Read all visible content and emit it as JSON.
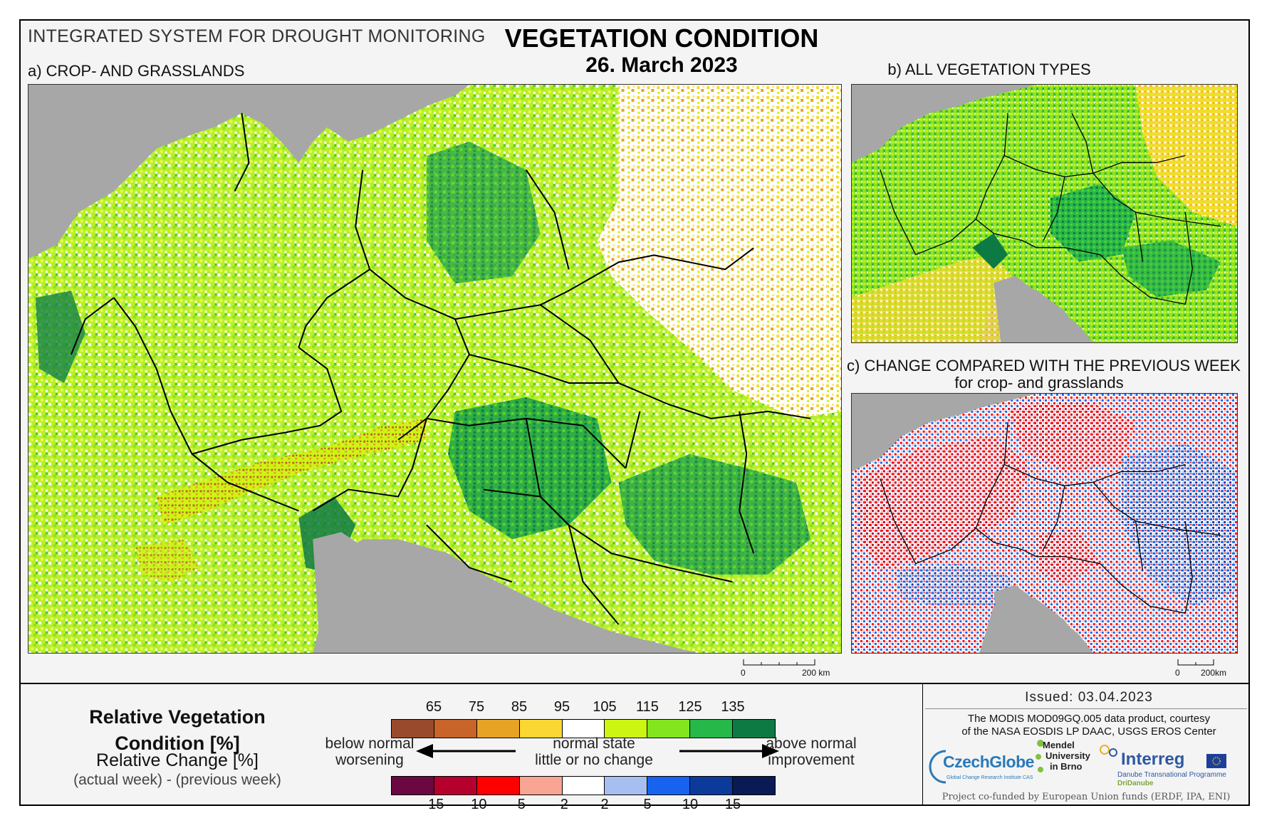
{
  "header": {
    "system_title": "INTEGRATED SYSTEM FOR DROUGHT MONITORING",
    "main_title": "VEGETATION CONDITION",
    "date": "26. March 2023"
  },
  "panels": {
    "a_label": "a) CROP- AND GRASSLANDS",
    "b_label": "b) ALL VEGETATION TYPES",
    "c_label": "c) CHANGE COMPARED WITH THE PREVIOUS WEEK",
    "c_sublabel": "for crop- and grasslands"
  },
  "scalebars": {
    "a": {
      "start": "0",
      "end": "200 km"
    },
    "c": {
      "start": "0",
      "end": "200km"
    }
  },
  "legend": {
    "title": "Relative Vegetation Condition [%]",
    "change_title": "Relative Change [%]",
    "change_formula": "(actual week) - (previous week)",
    "condition_ticks": [
      "65",
      "75",
      "85",
      "95",
      "105",
      "115",
      "125",
      "135"
    ],
    "condition_colors": [
      "#9a4a2c",
      "#c8642a",
      "#e7a324",
      "#fad733",
      "#ffffff",
      "#cdf514",
      "#83e51e",
      "#27b84a",
      "#0e7a43"
    ],
    "change_ticks": [
      "-15",
      "-10",
      "-5",
      "-2",
      "2",
      "5",
      "10",
      "15"
    ],
    "change_colors": [
      "#6b0741",
      "#b5002e",
      "#ff0000",
      "#f9a593",
      "#ffffff",
      "#a7bff0",
      "#1763f0",
      "#0b3a9a",
      "#0a1a55"
    ],
    "left_text": "below normal\nworsening",
    "left_line1": "below normal",
    "left_line2": "worsening",
    "mid_line1": "normal state",
    "mid_line2": "little or no change",
    "right_line1": "above normal",
    "right_line2": "improvement"
  },
  "footer": {
    "issued": "Issued: 03.04.2023",
    "credit_line1": "The MODIS MOD09GQ.005 data product, courtesy",
    "credit_line2": "of the NASA EOSDIS LP DAAC, USGS EROS Center",
    "czechglobe": "CzechGlobe",
    "czechglobe_sub": "Global Change Research Institute CAS",
    "mendel_line1": "Mendel",
    "mendel_line2": "University",
    "mendel_line3": "in Brno",
    "interreg": "Interreg",
    "interreg_sub": "Danube Transnational Programme",
    "dridanube": "DriDanube",
    "cofund": "Project co-funded by European Union funds (ERDF, IPA, ENI)"
  }
}
